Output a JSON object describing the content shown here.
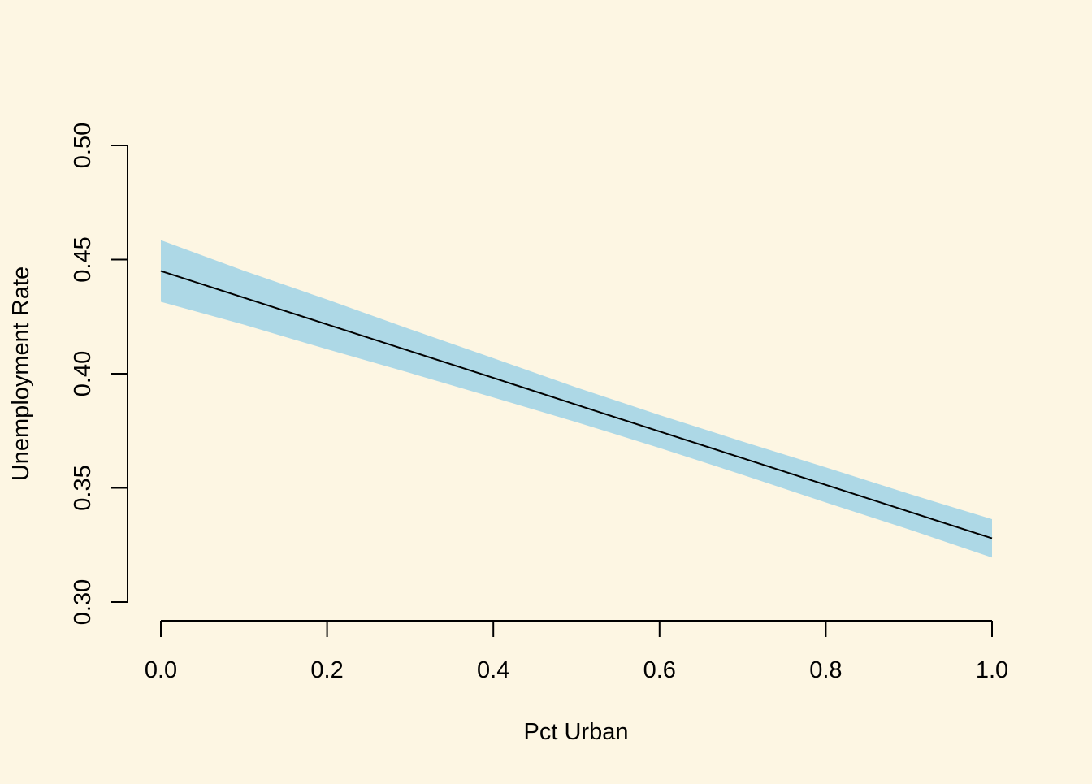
{
  "chart_data": {
    "type": "line",
    "title": "",
    "xlabel": "Pct Urban",
    "ylabel": "Unemployment Rate",
    "xlim": [
      0.0,
      1.0
    ],
    "ylim": [
      0.3,
      0.5
    ],
    "x_ticks": [
      0.0,
      0.2,
      0.4,
      0.6,
      0.8,
      1.0
    ],
    "x_tick_labels": [
      "0.0",
      "0.2",
      "0.4",
      "0.6",
      "0.8",
      "1.0"
    ],
    "y_ticks": [
      0.3,
      0.35,
      0.4,
      0.45,
      0.5
    ],
    "y_tick_labels": [
      "0.30",
      "0.35",
      "0.40",
      "0.45",
      "0.50"
    ],
    "grid": false,
    "legend": "none",
    "colors": {
      "background": "#FDF6E3",
      "band": "#ADD8E6",
      "line": "#000000",
      "axis": "#000000"
    },
    "series": [
      {
        "x": [
          0.0,
          0.1,
          0.2,
          0.3,
          0.4,
          0.5,
          0.6,
          0.7,
          0.8,
          0.9,
          1.0
        ],
        "y": [
          0.445,
          0.4333,
          0.4216,
          0.4099,
          0.3982,
          0.3864,
          0.3747,
          0.363,
          0.3513,
          0.3396,
          0.3279
        ],
        "lower": [
          0.4315,
          0.4215,
          0.4107,
          0.4003,
          0.3896,
          0.3788,
          0.3675,
          0.3557,
          0.3436,
          0.3318,
          0.3195
        ],
        "upper": [
          0.4585,
          0.4451,
          0.4325,
          0.4195,
          0.4068,
          0.394,
          0.3819,
          0.3703,
          0.359,
          0.3474,
          0.3363
        ]
      }
    ]
  }
}
